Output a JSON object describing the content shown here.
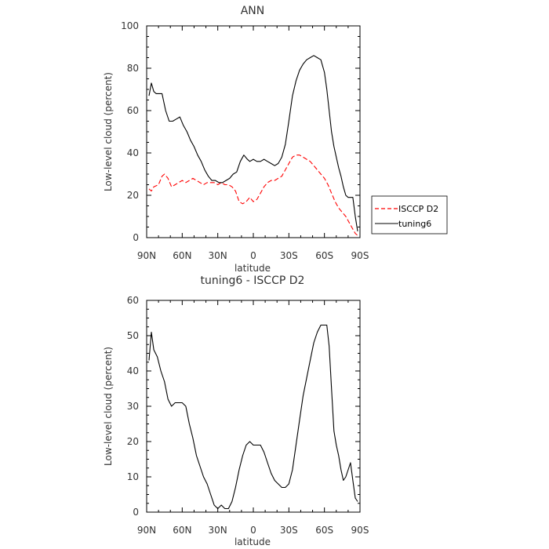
{
  "chart_data": [
    {
      "type": "line",
      "title": "ANN",
      "xlabel": "latitude",
      "ylabel": "Low-level cloud (percent)",
      "xlim": [
        90,
        -90
      ],
      "ylim": [
        0,
        100
      ],
      "xticks": [
        90,
        60,
        30,
        0,
        -30,
        -60,
        -90
      ],
      "xtick_labels": [
        "90N",
        "60N",
        "30N",
        "0",
        "30S",
        "60S",
        "90S"
      ],
      "yticks": [
        0,
        20,
        40,
        60,
        80,
        100
      ],
      "ytick_labels": [
        "0",
        "20",
        "40",
        "60",
        "80",
        "100"
      ],
      "legend_position": "right",
      "series": [
        {
          "name": "ISCCP D2",
          "color": "#ff0000",
          "dash": "dashed",
          "x": [
            88,
            86,
            84,
            80,
            77,
            75,
            72,
            69,
            66,
            63,
            60,
            57,
            54,
            51,
            48,
            45,
            42,
            39,
            36,
            33,
            30,
            27,
            24,
            21,
            18,
            15,
            12,
            9,
            6,
            3,
            0,
            -3,
            -6,
            -9,
            -12,
            -15,
            -18,
            -21,
            -24,
            -27,
            -30,
            -33,
            -36,
            -39,
            -42,
            -45,
            -48,
            -51,
            -54,
            -57,
            -60,
            -63,
            -66,
            -69,
            -72,
            -75,
            -78,
            -81,
            -84,
            -86,
            -88
          ],
          "y": [
            23,
            22,
            24,
            25,
            29,
            30,
            28,
            24,
            25,
            26,
            27,
            26,
            27,
            28,
            27,
            26,
            25,
            26,
            26,
            26,
            25,
            26,
            25,
            25,
            24,
            22,
            17,
            16,
            17,
            19,
            17,
            18,
            21,
            24,
            26,
            27,
            27,
            28,
            29,
            32,
            35,
            38,
            39,
            39,
            38,
            37,
            36,
            34,
            32,
            30,
            28,
            25,
            21,
            17,
            14,
            12,
            10,
            7,
            4,
            2,
            1
          ]
        },
        {
          "name": "tuning6",
          "color": "#000000",
          "dash": "solid",
          "x": [
            88,
            86,
            84,
            82,
            80,
            77,
            74,
            71,
            68,
            65,
            62,
            59,
            56,
            53,
            50,
            47,
            44,
            41,
            38,
            35,
            32,
            29,
            26,
            23,
            20,
            17,
            14,
            11,
            8,
            5,
            3,
            0,
            -3,
            -6,
            -9,
            -12,
            -15,
            -18,
            -21,
            -24,
            -27,
            -30,
            -33,
            -36,
            -39,
            -42,
            -45,
            -48,
            -51,
            -54,
            -57,
            -60,
            -62,
            -64,
            -66,
            -68,
            -70,
            -72,
            -74,
            -76,
            -78,
            -80,
            -82,
            -84,
            -86,
            -88
          ],
          "y": [
            67,
            73,
            69,
            68,
            68,
            68,
            60,
            55,
            55,
            56,
            57,
            53,
            50,
            46,
            43,
            39,
            36,
            32,
            29,
            27,
            27,
            26,
            26,
            27,
            28,
            30,
            31,
            36,
            39,
            37,
            36,
            37,
            36,
            36,
            37,
            36,
            35,
            34,
            35,
            38,
            44,
            55,
            67,
            74,
            79,
            82,
            84,
            85,
            86,
            85,
            84,
            78,
            70,
            60,
            50,
            43,
            38,
            33,
            29,
            24,
            20,
            19,
            19,
            19,
            10,
            3
          ]
        }
      ]
    },
    {
      "type": "line",
      "title": "tuning6 - ISCCP D2",
      "xlabel": "latitude",
      "ylabel": "Low-level cloud (percent)",
      "xlim": [
        90,
        -90
      ],
      "ylim": [
        0,
        60
      ],
      "xticks": [
        90,
        60,
        30,
        0,
        -30,
        -60,
        -90
      ],
      "xtick_labels": [
        "90N",
        "60N",
        "30N",
        "0",
        "30S",
        "60S",
        "90S"
      ],
      "yticks": [
        0,
        10,
        20,
        30,
        40,
        50,
        60
      ],
      "ytick_labels": [
        "0",
        "10",
        "20",
        "30",
        "40",
        "50",
        "60"
      ],
      "series": [
        {
          "color": "#000000",
          "dash": "solid",
          "x": [
            88,
            86,
            84,
            81,
            78,
            75,
            72,
            69,
            66,
            63,
            60,
            57,
            54,
            51,
            48,
            45,
            42,
            39,
            36,
            33,
            30,
            27,
            24,
            21,
            18,
            15,
            12,
            9,
            6,
            3,
            0,
            -3,
            -6,
            -9,
            -12,
            -15,
            -18,
            -21,
            -24,
            -27,
            -30,
            -33,
            -36,
            -39,
            -42,
            -45,
            -48,
            -51,
            -54,
            -57,
            -60,
            -62,
            -64,
            -66,
            -68,
            -70,
            -72,
            -74,
            -76,
            -78,
            -80,
            -82,
            -84,
            -86,
            -88
          ],
          "y": [
            43,
            51,
            46,
            44,
            40,
            37,
            32,
            30,
            31,
            31,
            31,
            30,
            25,
            21,
            16,
            13,
            10,
            8,
            5,
            2,
            1,
            2,
            1,
            1,
            3,
            7,
            12,
            16,
            19,
            20,
            19,
            19,
            19,
            17,
            14,
            11,
            9,
            8,
            7,
            7,
            8,
            12,
            19,
            26,
            33,
            38,
            43,
            48,
            51,
            53,
            53,
            53,
            47,
            35,
            23,
            19,
            16,
            12,
            9,
            10,
            12,
            14,
            9,
            4,
            3
          ]
        }
      ]
    }
  ]
}
